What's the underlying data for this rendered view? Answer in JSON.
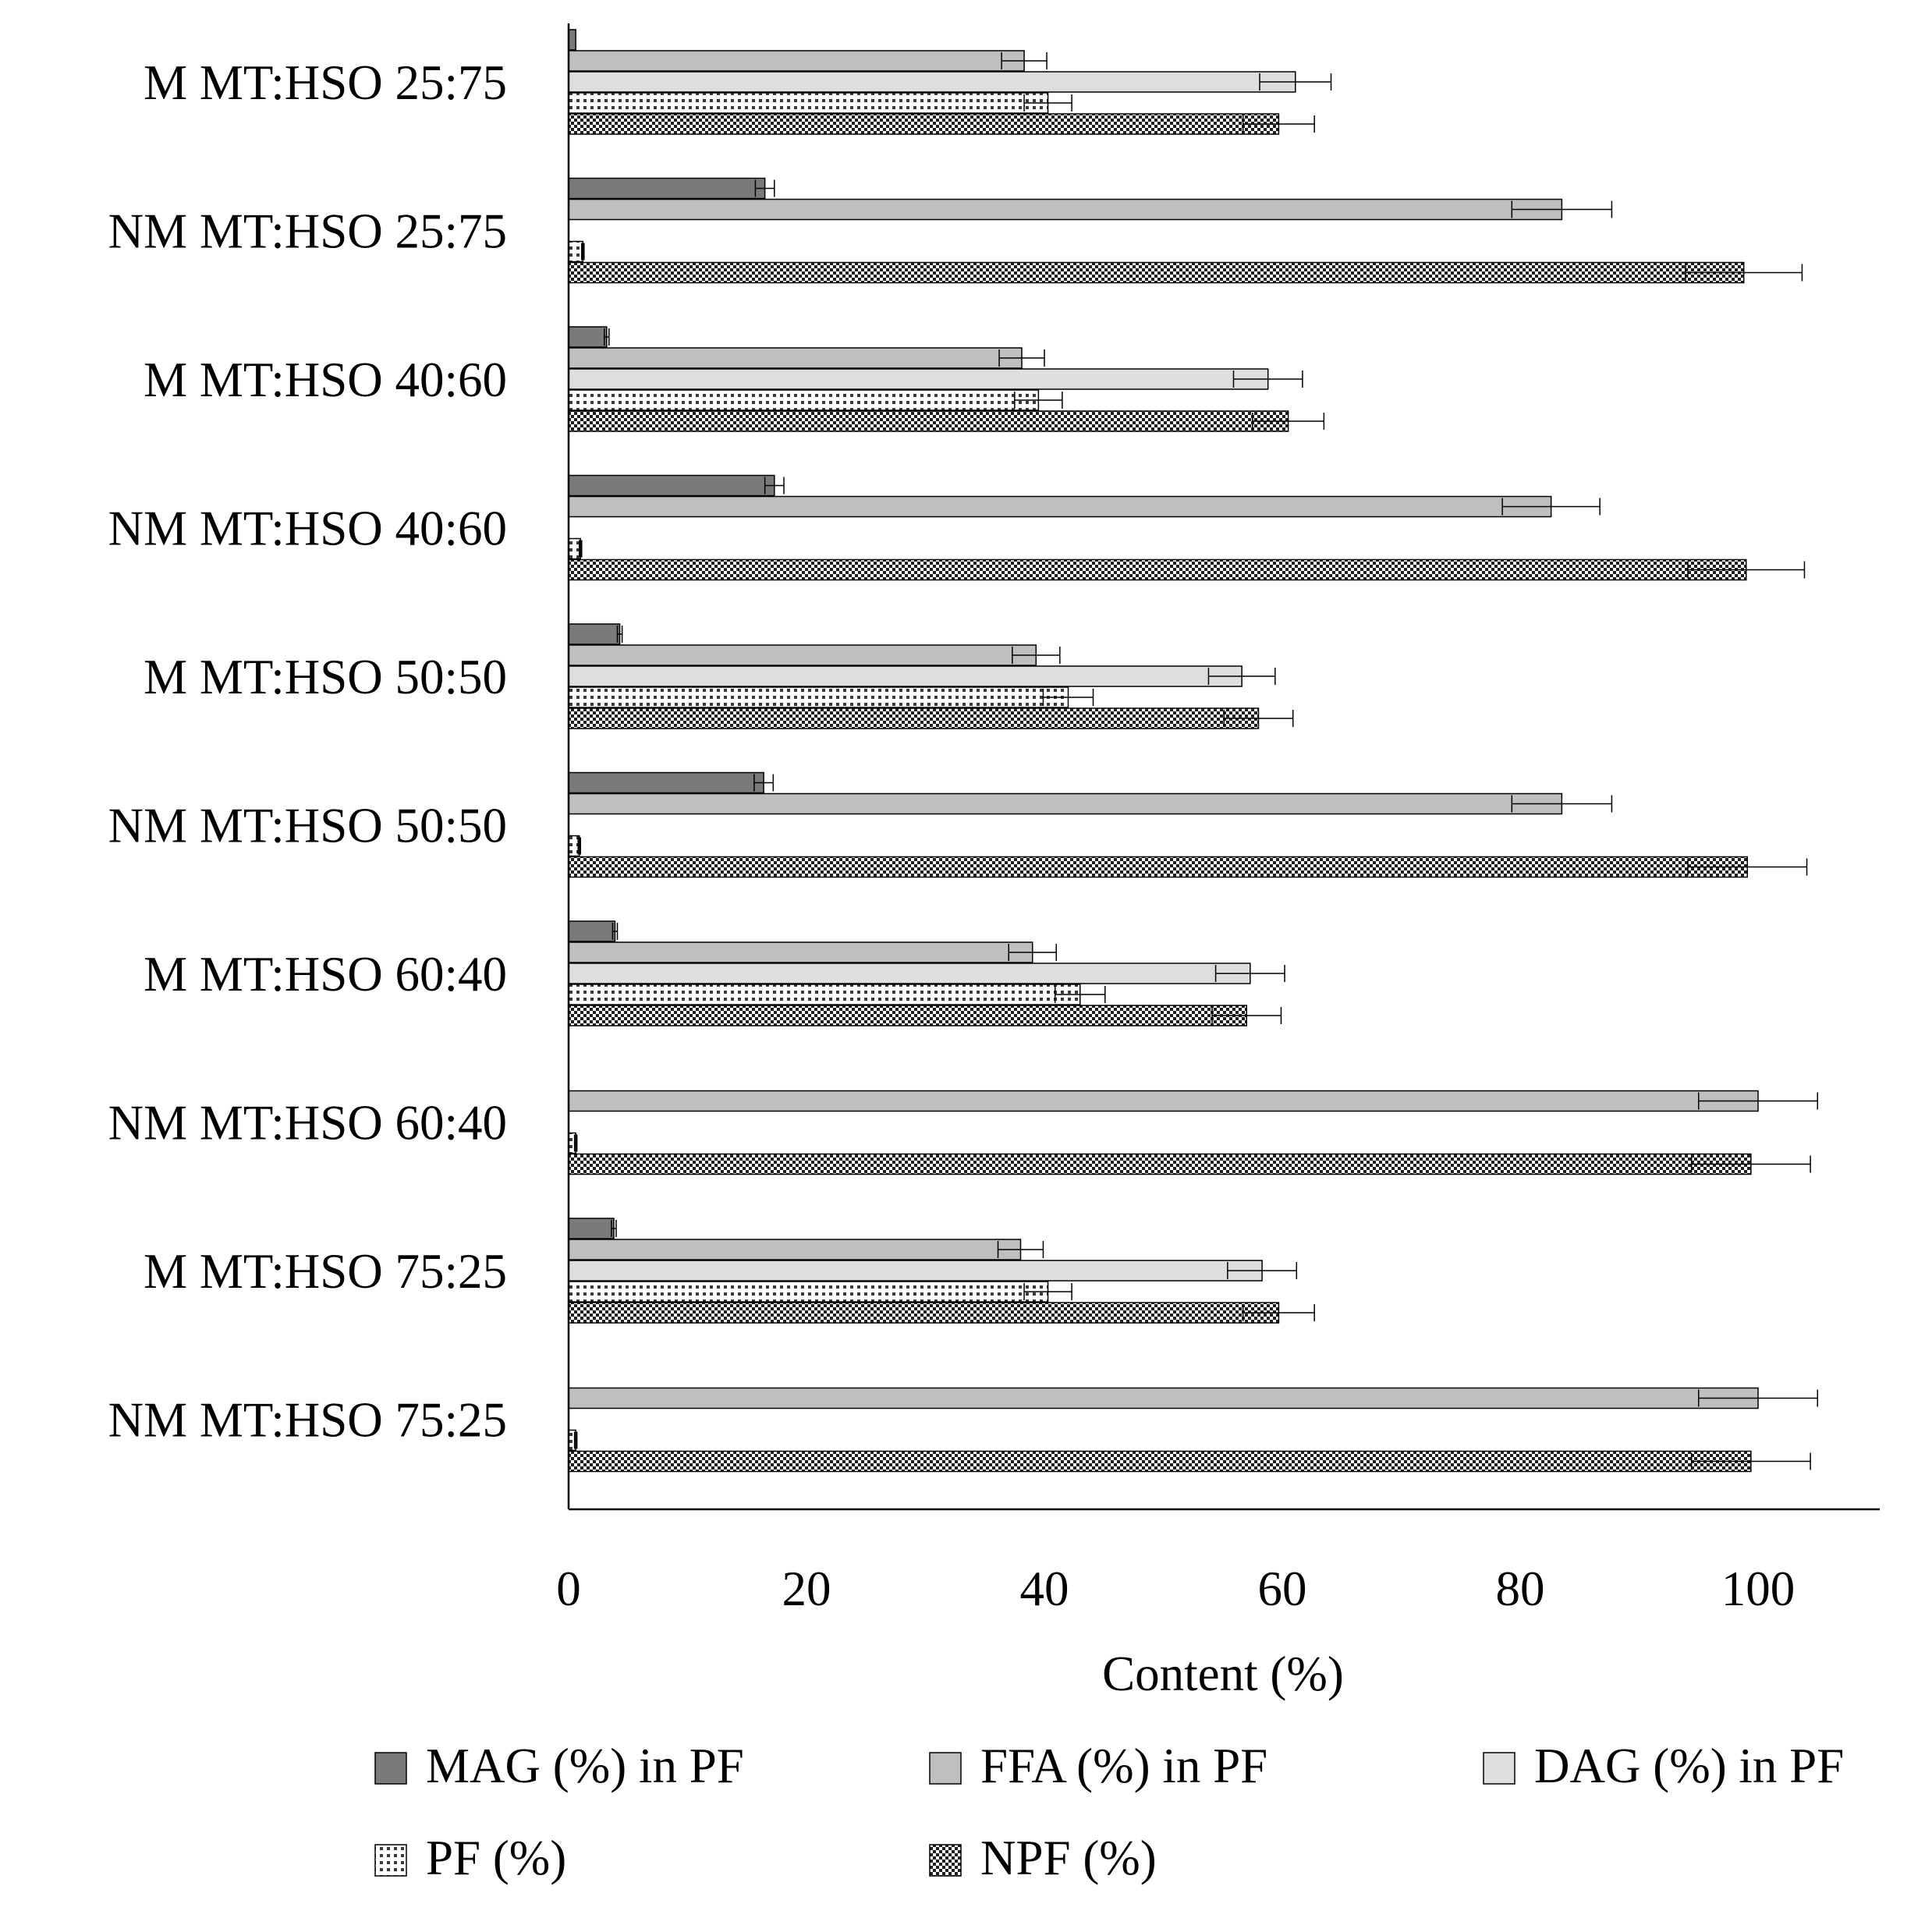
{
  "colors": {
    "mag": "#7a7a7a",
    "ffa": "#bfbfbf",
    "dag": "#dedede",
    "outline": "#000000",
    "errorbar": "#000000"
  },
  "chart_data": {
    "type": "bar",
    "orientation": "horizontal",
    "title": "",
    "xlabel": "Content (%)",
    "ylabel": "",
    "xlim": [
      0,
      110
    ],
    "x_ticks": [
      "0",
      "20",
      "40",
      "60",
      "80",
      "100"
    ],
    "grid": false,
    "legend_position": "bottom",
    "categories": [
      "M MT:HSO 25:75",
      "NM MT:HSO 25:75",
      "M MT:HSO 40:60",
      "NM MT:HSO 40:60",
      "M MT:HSO 50:50",
      "NM MT:HSO 50:50",
      "M MT:HSO 60:40",
      "NM MT:HSO 60:40",
      "M MT:HSO 75:25",
      "NM MT:HSO 75:25"
    ],
    "series": [
      {
        "name": "MAG (%) in PF",
        "pattern": "mag",
        "values": [
          0.6,
          16.5,
          3.2,
          17.3,
          4.3,
          16.4,
          3.9,
          0,
          3.8,
          0
        ],
        "errors": [
          0,
          0.8,
          0.2,
          0.8,
          0.2,
          0.8,
          0.2,
          0,
          0.2,
          0
        ]
      },
      {
        "name": "FFA (%) in PF",
        "pattern": "ffa",
        "values": [
          38.3,
          83.5,
          38.1,
          82.6,
          39.3,
          83.5,
          39.0,
          100,
          38.0,
          100
        ],
        "errors": [
          1.9,
          4.2,
          1.9,
          4.1,
          2.0,
          4.2,
          2.0,
          5.0,
          1.9,
          5.0
        ]
      },
      {
        "name": "DAG (%) in PF",
        "pattern": "dag",
        "values": [
          61.1,
          0,
          58.8,
          0,
          56.6,
          0,
          57.3,
          0,
          58.3,
          0
        ],
        "errors": [
          3.0,
          0,
          2.9,
          0,
          2.8,
          0,
          2.9,
          0,
          2.9,
          0
        ]
      },
      {
        "name": "PF (%)",
        "pattern": "pf",
        "values": [
          40.3,
          1.2,
          39.5,
          1.0,
          42.0,
          0.9,
          43.0,
          0.6,
          40.3,
          0.6
        ],
        "errors": [
          2.0,
          0.1,
          2.0,
          0.1,
          2.1,
          0.1,
          2.1,
          0.1,
          2.0,
          0.1
        ]
      },
      {
        "name": "NPF (%)",
        "pattern": "npf",
        "values": [
          59.7,
          98.8,
          60.5,
          99.0,
          58.0,
          99.1,
          57.0,
          99.4,
          59.7,
          99.4
        ],
        "errors": [
          3.0,
          4.9,
          3.0,
          4.9,
          2.9,
          5.0,
          2.9,
          5.0,
          3.0,
          5.0
        ]
      }
    ]
  }
}
